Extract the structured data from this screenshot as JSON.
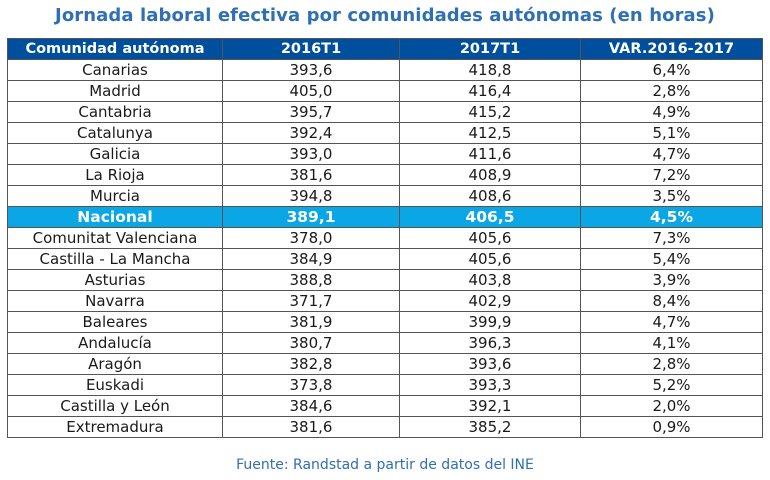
{
  "title": "Jornada laboral efectiva por comunidades autónomas (en horas)",
  "source": "Fuente: Randstad a partir de datos del INE",
  "colors": {
    "title": "#2f6fb3",
    "header_bg": "#004f9e",
    "national_bg": "#0aa6e6"
  },
  "chart_data": {
    "type": "table",
    "title": "Jornada laboral efectiva por comunidades autónomas (en horas)",
    "columns": [
      "Comunidad autónoma",
      "2016T1",
      "2017T1",
      "VAR.2016-2017"
    ],
    "highlight_row": "Nacional",
    "rows": [
      [
        "Canarias",
        "393,6",
        "418,8",
        "6,4%"
      ],
      [
        "Madrid",
        "405,0",
        "416,4",
        "2,8%"
      ],
      [
        "Cantabria",
        "395,7",
        "415,2",
        "4,9%"
      ],
      [
        "Catalunya",
        "392,4",
        "412,5",
        "5,1%"
      ],
      [
        "Galicia",
        "393,0",
        "411,6",
        "4,7%"
      ],
      [
        "La Rioja",
        "381,6",
        "408,9",
        "7,2%"
      ],
      [
        "Murcia",
        "394,8",
        "408,6",
        "3,5%"
      ],
      [
        "Nacional",
        "389,1",
        "406,5",
        "4,5%"
      ],
      [
        "Comunitat Valenciana",
        "378,0",
        "405,6",
        "7,3%"
      ],
      [
        "Castilla - La Mancha",
        "384,9",
        "405,6",
        "5,4%"
      ],
      [
        "Asturias",
        "388,8",
        "403,8",
        "3,9%"
      ],
      [
        "Navarra",
        "371,7",
        "402,9",
        "8,4%"
      ],
      [
        "Baleares",
        "381,9",
        "399,9",
        "4,7%"
      ],
      [
        "Andalucía",
        "380,7",
        "396,3",
        "4,1%"
      ],
      [
        "Aragón",
        "382,8",
        "393,6",
        "2,8%"
      ],
      [
        "Euskadi",
        "373,8",
        "393,3",
        "5,2%"
      ],
      [
        "Castilla y León",
        "384,6",
        "392,1",
        "2,0%"
      ],
      [
        "Extremadura",
        "381,6",
        "385,2",
        "0,9%"
      ]
    ]
  }
}
